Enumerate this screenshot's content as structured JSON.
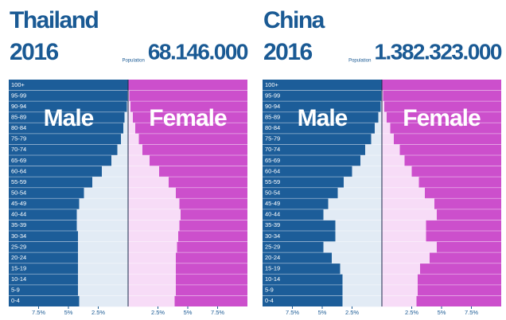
{
  "chart_data": [
    {
      "type": "pyramid",
      "title": "Thailand",
      "subtitle": "2016",
      "population_label": "Population",
      "population": "68.146.000",
      "categories": [
        "100+",
        "95-99",
        "90-94",
        "85-89",
        "80-84",
        "75-79",
        "70-74",
        "65-69",
        "60-64",
        "55-59",
        "50-54",
        "45-49",
        "40-44",
        "35-39",
        "30-34",
        "25-29",
        "20-24",
        "15-19",
        "10-14",
        "5-9",
        "0-4"
      ],
      "series": [
        {
          "name": "Male",
          "color": "#1c5d99",
          "values": [
            0,
            0.05,
            0.1,
            0.3,
            0.4,
            0.6,
            0.9,
            1.4,
            2.2,
            3.0,
            3.7,
            4.1,
            4.3,
            4.3,
            4.2,
            4.2,
            4.2,
            4.2,
            4.2,
            4.2,
            4.1
          ]
        },
        {
          "name": "Female",
          "color": "#cc4fcc",
          "values": [
            0,
            0.1,
            0.2,
            0.4,
            0.6,
            0.9,
            1.2,
            1.8,
            2.6,
            3.4,
            4.0,
            4.3,
            4.4,
            4.3,
            4.2,
            4.1,
            4.0,
            4.0,
            4.0,
            4.0,
            3.9
          ]
        }
      ],
      "xlim": [
        -10,
        10
      ],
      "xticks": [
        {
          "value": -7.5,
          "label": "7.5%"
        },
        {
          "value": -5,
          "label": "5%"
        },
        {
          "value": -2.5,
          "label": "2.5%"
        },
        {
          "value": 2.5,
          "label": "2.5%"
        },
        {
          "value": 5,
          "label": "5%"
        },
        {
          "value": 7.5,
          "label": "7.5%"
        }
      ]
    },
    {
      "type": "pyramid",
      "title": "China",
      "subtitle": "2016",
      "population_label": "Population",
      "population": "1.382.323.000",
      "categories": [
        "100+",
        "95-99",
        "90-94",
        "85-89",
        "80-84",
        "75-79",
        "70-74",
        "65-69",
        "60-64",
        "55-59",
        "50-54",
        "45-49",
        "40-44",
        "35-39",
        "30-34",
        "25-29",
        "20-24",
        "15-19",
        "10-14",
        "5-9",
        "0-4"
      ],
      "series": [
        {
          "name": "Male",
          "color": "#1c5d99",
          "values": [
            0,
            0.05,
            0.1,
            0.3,
            0.6,
            0.9,
            1.4,
            1.8,
            2.5,
            3.2,
            3.7,
            4.5,
            4.9,
            3.9,
            3.9,
            4.9,
            4.2,
            3.5,
            3.3,
            3.3,
            3.3
          ]
        },
        {
          "name": "Female",
          "color": "#cc4fcc",
          "values": [
            0,
            0.1,
            0.2,
            0.4,
            0.7,
            1.0,
            1.5,
            1.9,
            2.5,
            3.1,
            3.6,
            4.4,
            4.6,
            3.7,
            3.7,
            4.6,
            4.0,
            3.2,
            3.0,
            3.0,
            2.9
          ]
        }
      ],
      "xlim": [
        -10,
        10
      ],
      "xticks": [
        {
          "value": -7.5,
          "label": "7.5%"
        },
        {
          "value": -5,
          "label": "5%"
        },
        {
          "value": -2.5,
          "label": "2.5%"
        },
        {
          "value": 2.5,
          "label": "2.5%"
        },
        {
          "value": 5,
          "label": "5%"
        },
        {
          "value": 7.5,
          "label": "7.5%"
        }
      ]
    }
  ]
}
